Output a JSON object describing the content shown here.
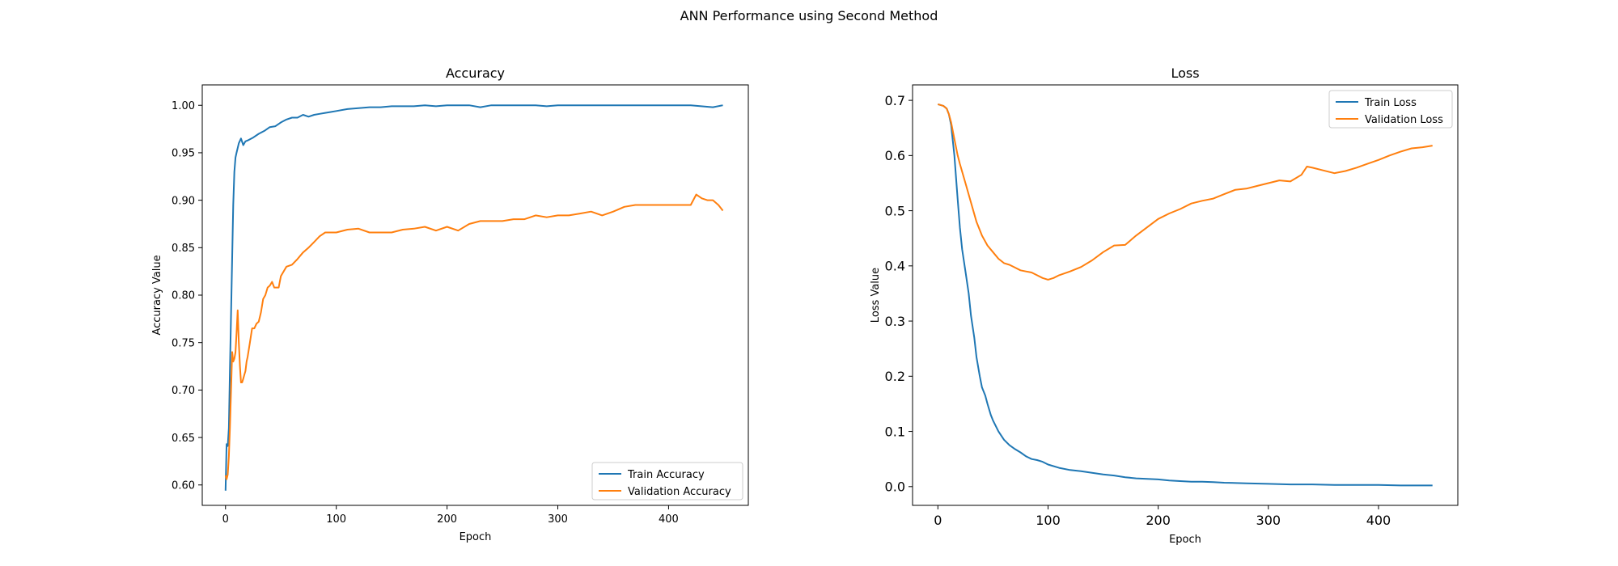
{
  "figure": {
    "suptitle": "ANN Performance using Second Method"
  },
  "colors": {
    "train": "#1f77b4",
    "validation": "#ff7f0e",
    "axis": "#000000",
    "background": "#ffffff"
  },
  "chart_data": [
    {
      "type": "line",
      "title": "Accuracy",
      "xlabel": "Epoch",
      "ylabel": "Accuracy Value",
      "xlim": [
        -21,
        472
      ],
      "ylim": [
        0.5785,
        1.0215
      ],
      "xticks": [
        0,
        100,
        200,
        300,
        400
      ],
      "xtick_labels": [
        "0",
        "100",
        "200",
        "300",
        "400"
      ],
      "yticks": [
        0.6,
        0.65,
        0.7,
        0.75,
        0.8,
        0.85,
        0.9,
        0.95,
        1.0
      ],
      "ytick_labels": [
        "0.60",
        "0.65",
        "0.70",
        "0.75",
        "0.80",
        "0.85",
        "0.90",
        "0.95",
        "1.00"
      ],
      "grid": false,
      "legend_position": "lower right",
      "series": [
        {
          "name": "Train Accuracy",
          "color": "#1f77b4",
          "x": [
            0,
            1,
            2,
            3,
            4,
            5,
            6,
            7,
            8,
            9,
            10,
            12,
            14,
            16,
            18,
            20,
            25,
            30,
            35,
            40,
            45,
            50,
            55,
            60,
            65,
            70,
            75,
            80,
            85,
            90,
            95,
            100,
            110,
            120,
            130,
            140,
            150,
            160,
            170,
            180,
            190,
            200,
            210,
            220,
            230,
            240,
            250,
            260,
            270,
            280,
            290,
            300,
            320,
            340,
            360,
            380,
            400,
            420,
            440,
            449
          ],
          "y": [
            0.594,
            0.643,
            0.641,
            0.66,
            0.72,
            0.78,
            0.84,
            0.895,
            0.93,
            0.945,
            0.95,
            0.96,
            0.965,
            0.958,
            0.962,
            0.963,
            0.966,
            0.97,
            0.973,
            0.977,
            0.978,
            0.982,
            0.985,
            0.987,
            0.987,
            0.99,
            0.988,
            0.99,
            0.991,
            0.992,
            0.993,
            0.994,
            0.996,
            0.997,
            0.998,
            0.998,
            0.999,
            0.999,
            0.999,
            1.0,
            0.999,
            1.0,
            1.0,
            1.0,
            0.998,
            1.0,
            1.0,
            1.0,
            1.0,
            1.0,
            0.999,
            1.0,
            1.0,
            1.0,
            1.0,
            1.0,
            1.0,
            1.0,
            0.998,
            1.0
          ]
        },
        {
          "name": "Validation Accuracy",
          "color": "#ff7f0e",
          "x": [
            0,
            1,
            2,
            3,
            4,
            5,
            6,
            7,
            8,
            9,
            10,
            11,
            12,
            13,
            14,
            15,
            16,
            17,
            18,
            19,
            20,
            22,
            24,
            26,
            28,
            30,
            32,
            34,
            36,
            38,
            40,
            42,
            44,
            46,
            48,
            50,
            55,
            60,
            65,
            70,
            75,
            80,
            85,
            90,
            95,
            100,
            110,
            120,
            130,
            140,
            150,
            160,
            170,
            180,
            190,
            200,
            210,
            220,
            230,
            240,
            250,
            260,
            270,
            280,
            290,
            300,
            310,
            320,
            330,
            340,
            350,
            360,
            370,
            380,
            390,
            400,
            410,
            420,
            425,
            430,
            435,
            440,
            445,
            449
          ],
          "y": [
            0.61,
            0.606,
            0.611,
            0.63,
            0.66,
            0.7,
            0.74,
            0.73,
            0.733,
            0.74,
            0.76,
            0.784,
            0.75,
            0.725,
            0.708,
            0.708,
            0.712,
            0.716,
            0.72,
            0.73,
            0.735,
            0.75,
            0.765,
            0.765,
            0.77,
            0.772,
            0.782,
            0.796,
            0.8,
            0.808,
            0.81,
            0.814,
            0.808,
            0.808,
            0.808,
            0.82,
            0.83,
            0.832,
            0.838,
            0.845,
            0.85,
            0.856,
            0.862,
            0.866,
            0.866,
            0.866,
            0.869,
            0.87,
            0.866,
            0.866,
            0.866,
            0.869,
            0.87,
            0.872,
            0.868,
            0.872,
            0.868,
            0.875,
            0.878,
            0.878,
            0.878,
            0.88,
            0.88,
            0.884,
            0.882,
            0.884,
            0.884,
            0.886,
            0.888,
            0.884,
            0.888,
            0.893,
            0.895,
            0.895,
            0.895,
            0.895,
            0.895,
            0.895,
            0.906,
            0.902,
            0.9,
            0.9,
            0.895,
            0.889
          ]
        }
      ]
    },
    {
      "type": "line",
      "title": "Loss",
      "xlabel": "Epoch",
      "ylabel": "Loss Value",
      "xlim": [
        -23,
        472
      ],
      "ylim": [
        -0.034,
        0.728
      ],
      "xticks": [
        0,
        100,
        200,
        300,
        400
      ],
      "xtick_labels": [
        "0",
        "100",
        "200",
        "300",
        "400"
      ],
      "yticks": [
        0.0,
        0.1,
        0.2,
        0.3,
        0.4,
        0.5,
        0.6,
        0.7
      ],
      "ytick_labels": [
        "0.0",
        "0.1",
        "0.2",
        "0.3",
        "0.4",
        "0.5",
        "0.6",
        "0.7"
      ],
      "grid": false,
      "legend_position": "upper right",
      "series": [
        {
          "name": "Train Loss",
          "color": "#1f77b4",
          "x": [
            0,
            5,
            8,
            10,
            12,
            15,
            18,
            20,
            22,
            25,
            28,
            30,
            33,
            35,
            38,
            40,
            43,
            45,
            48,
            50,
            55,
            60,
            65,
            70,
            75,
            80,
            85,
            90,
            95,
            100,
            110,
            120,
            130,
            140,
            150,
            160,
            170,
            180,
            190,
            200,
            210,
            220,
            230,
            240,
            250,
            260,
            280,
            300,
            320,
            340,
            360,
            380,
            400,
            420,
            440,
            449
          ],
          "y": [
            0.693,
            0.69,
            0.685,
            0.675,
            0.655,
            0.6,
            0.52,
            0.47,
            0.43,
            0.39,
            0.35,
            0.31,
            0.27,
            0.235,
            0.2,
            0.18,
            0.165,
            0.15,
            0.13,
            0.12,
            0.1,
            0.085,
            0.075,
            0.068,
            0.062,
            0.055,
            0.05,
            0.048,
            0.045,
            0.04,
            0.034,
            0.03,
            0.028,
            0.025,
            0.022,
            0.02,
            0.017,
            0.015,
            0.014,
            0.013,
            0.011,
            0.01,
            0.009,
            0.009,
            0.008,
            0.007,
            0.006,
            0.005,
            0.004,
            0.004,
            0.003,
            0.003,
            0.003,
            0.002,
            0.002,
            0.002
          ]
        },
        {
          "name": "Validation Loss",
          "color": "#ff7f0e",
          "x": [
            0,
            5,
            8,
            10,
            12,
            15,
            18,
            20,
            25,
            30,
            35,
            40,
            45,
            50,
            55,
            60,
            65,
            70,
            75,
            80,
            85,
            90,
            95,
            100,
            105,
            110,
            120,
            130,
            140,
            150,
            160,
            170,
            180,
            190,
            200,
            210,
            220,
            230,
            240,
            250,
            260,
            270,
            280,
            290,
            300,
            310,
            320,
            330,
            335,
            340,
            350,
            360,
            370,
            380,
            390,
            400,
            410,
            420,
            430,
            440,
            449
          ],
          "y": [
            0.693,
            0.69,
            0.685,
            0.675,
            0.66,
            0.63,
            0.6,
            0.585,
            0.55,
            0.515,
            0.48,
            0.455,
            0.437,
            0.425,
            0.413,
            0.405,
            0.402,
            0.397,
            0.392,
            0.39,
            0.388,
            0.383,
            0.378,
            0.375,
            0.378,
            0.383,
            0.39,
            0.398,
            0.41,
            0.425,
            0.437,
            0.438,
            0.455,
            0.47,
            0.485,
            0.495,
            0.503,
            0.513,
            0.518,
            0.522,
            0.53,
            0.538,
            0.54,
            0.545,
            0.55,
            0.555,
            0.553,
            0.565,
            0.58,
            0.578,
            0.573,
            0.568,
            0.572,
            0.578,
            0.585,
            0.592,
            0.6,
            0.607,
            0.613,
            0.615,
            0.618
          ]
        }
      ]
    }
  ]
}
